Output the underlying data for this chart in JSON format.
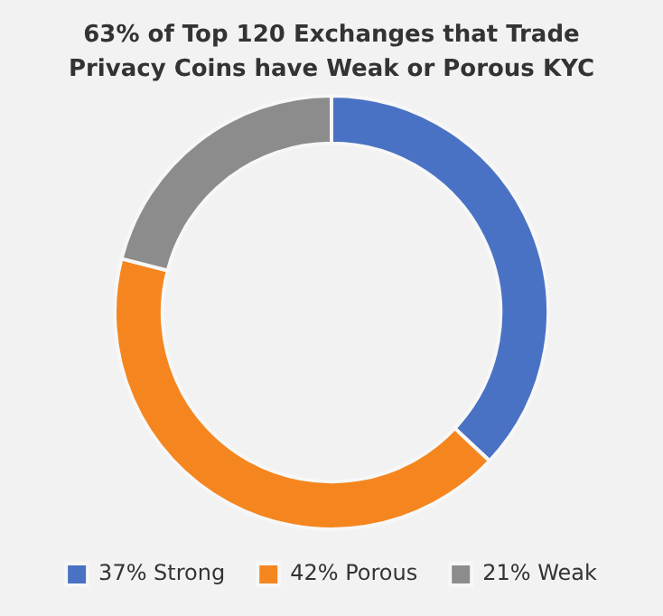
{
  "chart_data": {
    "type": "donut",
    "title": "63% of Top 120 Exchanges that Trade Privacy Coins have Weak or Porous KYC",
    "categories": [
      "37% Strong",
      "42% Porous",
      "21% Weak"
    ],
    "values": [
      37,
      42,
      21
    ],
    "colors": [
      "#4a72c4",
      "#f5861f",
      "#8c8c8c"
    ],
    "legend": "bottom"
  }
}
